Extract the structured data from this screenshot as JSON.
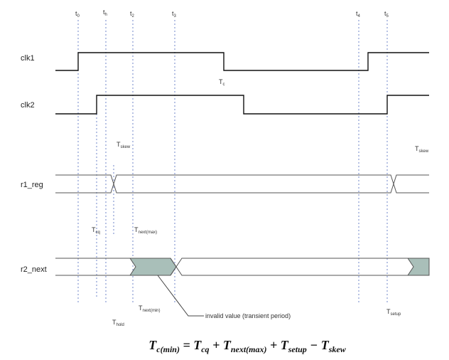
{
  "times": {
    "t0": {
      "t": "t",
      "s": "0"
    },
    "th": {
      "t": "t",
      "s": "h"
    },
    "t2": {
      "t": "t",
      "s": "2"
    },
    "t3": {
      "t": "t",
      "s": "3"
    },
    "t4": {
      "t": "t",
      "s": "4"
    },
    "t5": {
      "t": "t",
      "s": "5"
    }
  },
  "signals": {
    "clk1": "clk1",
    "clk2": "clk2",
    "r1_reg": "r1_reg",
    "r2_next": "r2_next"
  },
  "annotations": {
    "tc": {
      "t": "T",
      "s": "c"
    },
    "tskew1": {
      "t": "T",
      "s": "skew"
    },
    "tskew2": {
      "t": "T",
      "s": "skew"
    },
    "tcq": {
      "t": "T",
      "s": "cq"
    },
    "tnextmax": {
      "t": "T",
      "s": "next(max)"
    },
    "tnextmin": {
      "t": "T",
      "s": "next(min)"
    },
    "thold": {
      "t": "T",
      "s": "hold"
    },
    "tsetup": {
      "t": "T",
      "s": "setup"
    },
    "invalid": "invalid value (transient period)"
  },
  "formula": {
    "lhs": "T",
    "lhs_sub": "c(min)",
    "eq": " = ",
    "a": "T",
    "a_sub": "cq",
    "plus1": " + ",
    "b": "T",
    "b_sub": "next(max)",
    "plus2": " + ",
    "c": "T",
    "c_sub": "setup",
    "minus": " − ",
    "d": "T",
    "d_sub": "skew"
  },
  "colors": {
    "guide": "#6f86c8",
    "invalid_fill": "#a9bfb9",
    "waveform": "#111111"
  }
}
